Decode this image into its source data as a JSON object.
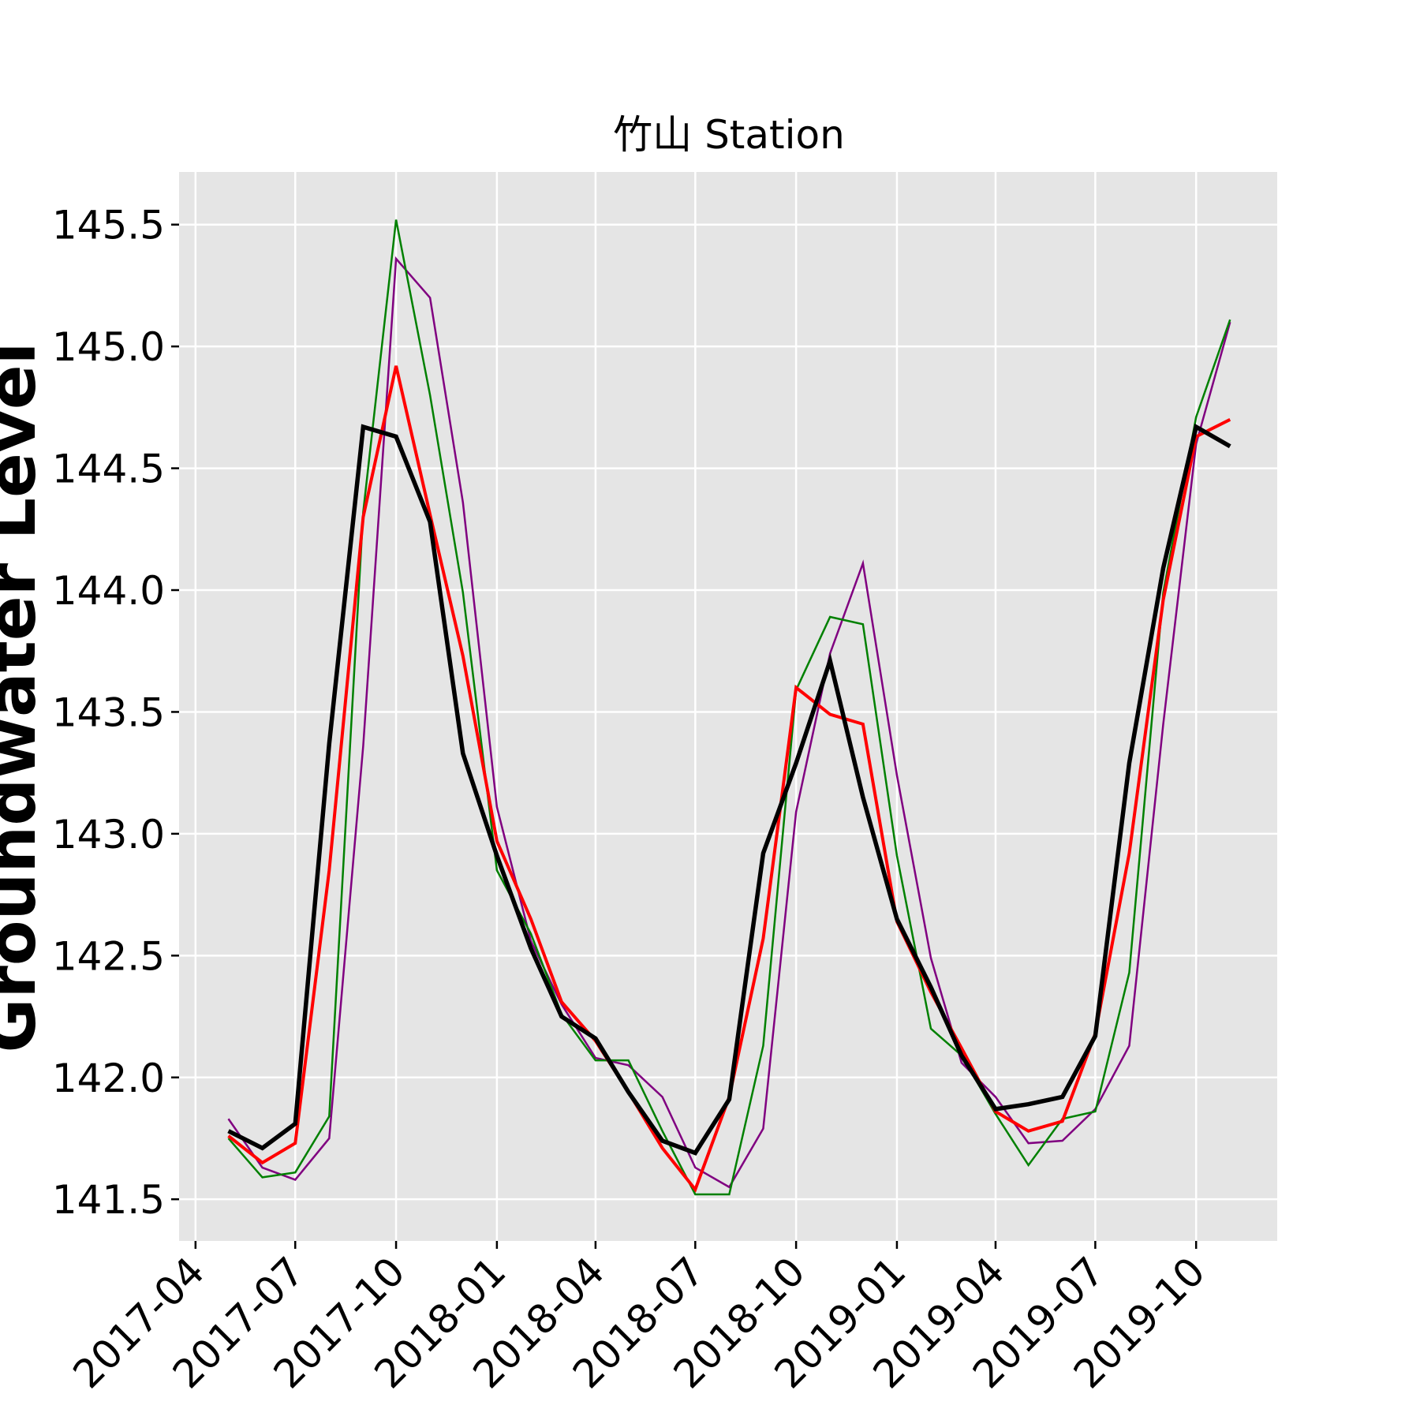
{
  "chart_data": {
    "type": "line",
    "title": "竹山 Station",
    "ylabel": "Groundwater Level",
    "x": [
      "2017-05",
      "2017-06",
      "2017-07",
      "2017-08",
      "2017-09",
      "2017-10",
      "2017-11",
      "2017-12",
      "2018-01",
      "2018-02",
      "2018-03",
      "2018-04",
      "2018-05",
      "2018-06",
      "2018-07",
      "2018-08",
      "2018-09",
      "2018-10",
      "2018-11",
      "2018-12",
      "2019-01",
      "2019-02",
      "2019-03",
      "2019-04",
      "2019-05",
      "2019-06",
      "2019-07",
      "2019-08",
      "2019-09",
      "2019-10",
      "2019-11"
    ],
    "series": [
      {
        "color": "#800080",
        "linewidth": 2.5,
        "values": [
          141.83,
          141.63,
          141.58,
          141.75,
          143.36,
          145.36,
          145.2,
          144.36,
          143.11,
          142.56,
          142.3,
          142.08,
          142.05,
          141.92,
          141.63,
          141.55,
          141.79,
          143.09,
          143.74,
          144.11,
          143.24,
          142.49,
          142.06,
          141.92,
          141.73,
          141.74,
          141.87,
          142.13,
          143.45,
          144.6,
          145.1
        ]
      },
      {
        "color": "#008000",
        "linewidth": 2.5,
        "values": [
          141.75,
          141.59,
          141.61,
          141.84,
          144.32,
          145.52,
          144.8,
          143.99,
          142.85,
          142.59,
          142.26,
          142.07,
          142.07,
          141.78,
          141.52,
          141.52,
          142.13,
          143.59,
          143.89,
          143.86,
          142.91,
          142.2,
          142.09,
          141.85,
          141.64,
          141.83,
          141.86,
          142.43,
          143.99,
          144.71,
          145.11
        ]
      },
      {
        "color": "#ff0000",
        "linewidth": 4,
        "values": [
          141.76,
          141.65,
          141.73,
          142.85,
          144.3,
          144.92,
          144.31,
          143.73,
          142.97,
          142.65,
          142.31,
          142.15,
          141.94,
          141.71,
          141.54,
          141.92,
          142.57,
          143.6,
          143.49,
          143.45,
          142.64,
          142.35,
          142.12,
          141.86,
          141.78,
          141.82,
          142.18,
          142.92,
          143.96,
          144.63,
          144.7
        ]
      },
      {
        "color": "#000000",
        "linewidth": 5.5,
        "values": [
          141.78,
          141.71,
          141.81,
          143.37,
          144.67,
          144.63,
          144.28,
          143.33,
          142.91,
          142.53,
          142.25,
          142.16,
          141.94,
          141.74,
          141.69,
          141.91,
          142.92,
          143.29,
          143.71,
          143.15,
          142.65,
          142.37,
          142.09,
          141.87,
          141.89,
          141.92,
          142.17,
          143.29,
          144.09,
          144.67,
          144.59
        ]
      }
    ],
    "xlim": [
      "2017-03-17",
      "2019-12-14"
    ],
    "xticks": [
      "2017-04",
      "2017-07",
      "2017-10",
      "2018-01",
      "2018-04",
      "2018-07",
      "2018-10",
      "2019-01",
      "2019-04",
      "2019-07",
      "2019-10"
    ],
    "ylim": [
      141.329,
      145.716
    ],
    "yticks": [
      141.5,
      {
        "value": 142,
        "label": "142.0"
      },
      142.5,
      {
        "value": 143,
        "label": "143.0"
      },
      143.5,
      {
        "value": 144,
        "label": "144.0"
      },
      144.5,
      {
        "value": 145,
        "label": "145.0"
      },
      145.5
    ],
    "grid": true,
    "background": "#e5e5e5"
  }
}
